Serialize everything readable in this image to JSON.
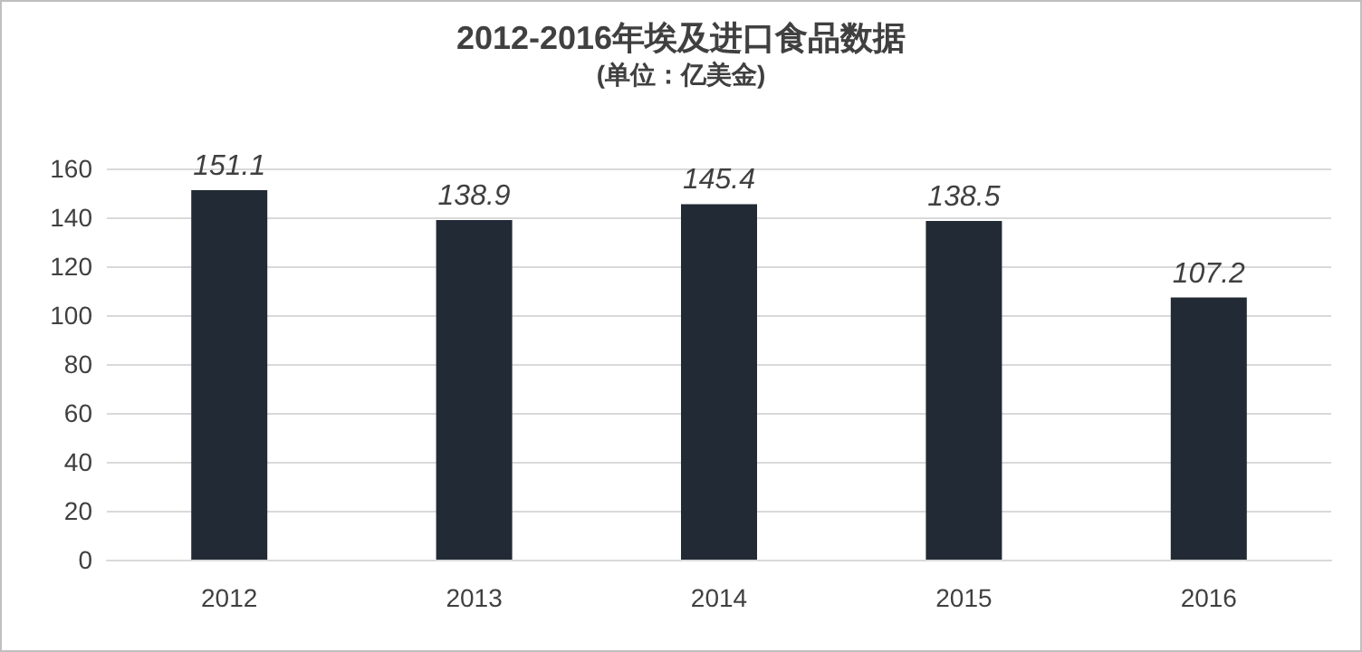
{
  "chart_data": {
    "type": "bar",
    "title": "2012-2016年埃及进口食品数据",
    "subtitle": "(单位：亿美金)",
    "categories": [
      "2012",
      "2013",
      "2014",
      "2015",
      "2016"
    ],
    "values": [
      151.1,
      138.9,
      145.4,
      138.5,
      107.2
    ],
    "color": "#222a35",
    "ylim": [
      0,
      160
    ],
    "yticks": [
      0,
      20,
      40,
      60,
      80,
      100,
      120,
      140,
      160
    ],
    "grid": "y",
    "data_labels": true
  }
}
